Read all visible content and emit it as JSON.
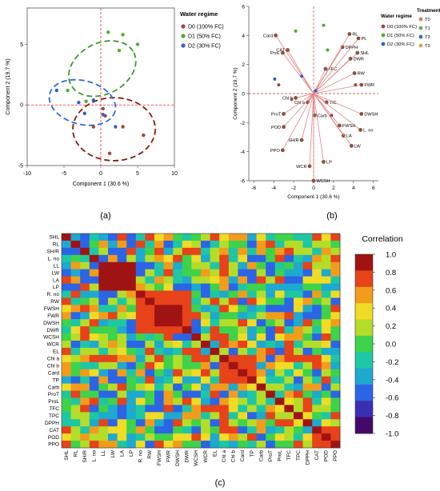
{
  "figure": {
    "panel_labels": [
      "(a)",
      "(b)",
      "(c)"
    ]
  },
  "chart_data": [
    {
      "id": "a",
      "type": "scatter",
      "title": "",
      "xlabel": "Component 1  (30.6 %)",
      "ylabel": "Component 2  (19.7 %)",
      "xlim": [
        -10,
        10
      ],
      "ylim": [
        -5,
        8
      ],
      "x_ticks": [
        -10,
        -5,
        0,
        5,
        10
      ],
      "y_ticks": [
        -5,
        0,
        5
      ],
      "grid": false,
      "legend_title": "Water regime",
      "legend_position": "right",
      "series": [
        {
          "name": "D0 (100% FC)",
          "color": "#a8433b",
          "x": [
            0.3,
            1.2,
            3.0,
            5.8,
            0.6,
            -1.0
          ],
          "y": [
            -0.3,
            -4.0,
            -1.8,
            -2.5,
            -0.9,
            -1.8
          ]
        },
        {
          "name": "D1 (50% FC)",
          "color": "#4caf2d",
          "x": [
            1.0,
            3.0,
            5.0,
            -2.0,
            -4.5,
            2.5
          ],
          "y": [
            6.0,
            5.8,
            5.0,
            0.3,
            1.2,
            4.5
          ]
        },
        {
          "name": "D2 (30% FC)",
          "color": "#2f5fd0",
          "x": [
            -6.0,
            -3.0,
            -2.2,
            0.3,
            2.0,
            -1.0
          ],
          "y": [
            1.2,
            0.2,
            -0.7,
            -0.8,
            -1.8,
            0.4
          ]
        }
      ],
      "ellipses": [
        {
          "group": "D0 (100% FC)",
          "color": "#8b1a0e",
          "center": [
            1.8,
            -2.0
          ],
          "rx": 5.6,
          "ry": 2.6
        },
        {
          "group": "D1 (50% FC)",
          "color": "#3a9a2a",
          "center": [
            0.2,
            3.0
          ],
          "rx": 4.8,
          "ry": 2.1,
          "rotation": 27
        },
        {
          "group": "D2 (30% FC)",
          "color": "#2f6ad8",
          "center": [
            -2.5,
            0.2
          ],
          "rx": 4.6,
          "ry": 1.8,
          "rotation": -15
        }
      ]
    },
    {
      "id": "b",
      "type": "scatter",
      "title": "",
      "xlabel": "Component 1 (30.6 %)",
      "ylabel": "Component 2  (19.7 %)",
      "xlim": [
        -6.5,
        6.5
      ],
      "ylim": [
        -6,
        6
      ],
      "x_ticks": [
        -6,
        -4,
        -2,
        0,
        2,
        4,
        6
      ],
      "y_ticks": [
        -6,
        -4,
        -2,
        0,
        2,
        4,
        6
      ],
      "grid": false,
      "legend_title": "Water regime",
      "treatment_legend_title": "Treatment",
      "series": [
        {
          "name": "D0 (100% FC)",
          "color": "#a8433b",
          "x": [
            -2.2,
            -3.5,
            1.8,
            4.2
          ],
          "y": [
            -0.4,
            0.6,
            -1.5,
            0.6
          ]
        },
        {
          "name": "D1 (50% FC)",
          "color": "#4caf2d",
          "x": [
            -1.8,
            1.4,
            1.0
          ],
          "y": [
            4.3,
            3.0,
            4.7
          ]
        },
        {
          "name": "D2 (30% FC)",
          "color": "#2f5fd0",
          "x": [
            -3.9,
            -1.2,
            0.2
          ],
          "y": [
            1.0,
            1.2,
            0.2
          ]
        }
      ],
      "treatments": [
        {
          "name": "T0",
          "color": "#c97f68"
        },
        {
          "name": "T1",
          "color": "#6fa86a"
        },
        {
          "name": "T2",
          "color": "#3d6bc4"
        },
        {
          "name": "T3",
          "color": "#c9a95f"
        }
      ],
      "loadings": [
        {
          "label": "Card",
          "x": -3.8,
          "y": 4.0
        },
        {
          "label": "CAT",
          "x": -2.6,
          "y": 3.0
        },
        {
          "label": "ProL",
          "x": -3.1,
          "y": 2.8
        },
        {
          "label": "TFC",
          "x": 1.2,
          "y": 1.7
        },
        {
          "label": "DPPH",
          "x": 2.9,
          "y": 3.2
        },
        {
          "label": "RL",
          "x": 3.6,
          "y": 4.1
        },
        {
          "label": "PL",
          "x": 4.5,
          "y": 3.8
        },
        {
          "label": "SHL",
          "x": 4.4,
          "y": 2.8
        },
        {
          "label": "DWR",
          "x": 3.7,
          "y": 2.4
        },
        {
          "label": "RW",
          "x": 4.1,
          "y": 1.4
        },
        {
          "label": "FWR",
          "x": 4.8,
          "y": 0.6
        },
        {
          "label": "Chl b",
          "x": -1.8,
          "y": -0.3
        },
        {
          "label": "Chl a",
          "x": -0.6,
          "y": -0.6
        },
        {
          "label": "TIC",
          "x": 1.3,
          "y": -0.6
        },
        {
          "label": "DWSH",
          "x": 4.8,
          "y": -1.4
        },
        {
          "label": "ProT",
          "x": -3.0,
          "y": -1.4
        },
        {
          "label": "Carb",
          "x": 0.1,
          "y": -1.5
        },
        {
          "label": "POD",
          "x": -3.0,
          "y": -2.3
        },
        {
          "label": "FWSH",
          "x": 2.6,
          "y": -2.2
        },
        {
          "label": "L. no",
          "x": 4.7,
          "y": -2.5
        },
        {
          "label": "LA",
          "x": 3.0,
          "y": -2.9
        },
        {
          "label": "LW",
          "x": 3.8,
          "y": -3.6
        },
        {
          "label": "SH/R",
          "x": -1.2,
          "y": -3.2
        },
        {
          "label": "PPO",
          "x": -3.1,
          "y": -3.9
        },
        {
          "label": "LP",
          "x": 1.0,
          "y": -4.7
        },
        {
          "label": "WCR",
          "x": -0.4,
          "y": -5.0
        },
        {
          "label": "WCSH",
          "x": 0.0,
          "y": -6.0
        }
      ]
    },
    {
      "id": "c",
      "type": "heatmap",
      "title": "",
      "legend_title": "Correlation",
      "colorbar_ticks": [
        "1.0",
        "0.8",
        "0.6",
        "0.4",
        "0.2",
        "0.0",
        "-0.2",
        "-0.4",
        "-0.6",
        "-0.8",
        "-1.0"
      ],
      "vmin": -1.0,
      "vmax": 1.0,
      "colorscale": [
        "#420a68",
        "#3a2fb3",
        "#2c64e6",
        "#1ea9cf",
        "#1ec7a4",
        "#3fd24b",
        "#b4dd2a",
        "#f0dc25",
        "#f39c1c",
        "#e7421a",
        "#a01313"
      ],
      "variables": [
        "SHL",
        "RL",
        "SH/R",
        "L. no",
        "LL",
        "LW",
        "LA",
        "LP",
        "R. no",
        "RW",
        "FWSH",
        "FWR",
        "DWSH",
        "DWR",
        "WCSH",
        "WCR",
        "EL",
        "Chl a",
        "Chl b",
        "Card",
        "TP",
        "Carb",
        "ProT",
        "ProL",
        "TFC",
        "TPC",
        "DPPH",
        "CAT",
        "POD",
        "PPO"
      ],
      "group_blocks": [
        {
          "rows": [
            4,
            7
          ],
          "value": 0.95
        },
        {
          "rows": [
            8,
            13
          ],
          "value": 0.85
        },
        {
          "rows": [
            10,
            12
          ],
          "value": 0.97
        },
        {
          "rows": [
            17,
            20
          ],
          "value": 0.8
        },
        {
          "rows": [
            27,
            29
          ],
          "value": 0.7
        }
      ]
    }
  ]
}
